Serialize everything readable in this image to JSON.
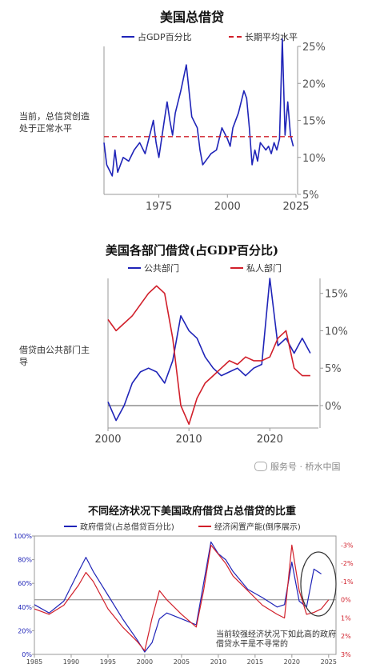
{
  "panels": {
    "p1": {
      "title": "美国总借贷",
      "legend": {
        "series1": "占GDP百分比",
        "series2": "长期平均水平"
      },
      "note": "当前，总信贷创造处于正常水平"
    },
    "p2": {
      "title": "美国各部门借贷(占GDP百分比)",
      "legend": {
        "series1": "公共部门",
        "series2": "私人部门"
      },
      "note": "借贷由公共部门主导"
    },
    "p3": {
      "title": "不同经济状况下美国政府借贷占总借贷的比重",
      "legend": {
        "series1": "政府借贷(占总借贷百分比)",
        "series2": "经济闲置产能(倒序展示)"
      },
      "note": "当前较强经济状况下如此高的政府借贷水平是不寻常的"
    }
  },
  "watermark": "服务号 · 桥水中国",
  "colors": {
    "blue": "#1f24b8",
    "red": "#d11f2a",
    "axis": "#999999"
  },
  "chart_data": [
    {
      "type": "line",
      "title": "美国总借贷",
      "y_axis_side": "right",
      "xlim": [
        1955,
        2025
      ],
      "ylim": [
        5,
        25
      ],
      "xticks": [
        1975,
        2000,
        2025
      ],
      "yticks": [
        5,
        10,
        15,
        20,
        25
      ],
      "ytick_labels": [
        "5%",
        "10%",
        "15%",
        "20%",
        "25%"
      ],
      "series": [
        {
          "name": "占GDP百分比",
          "color": "#1f24b8",
          "points": [
            [
              1955,
              12
            ],
            [
              1956,
              9
            ],
            [
              1958,
              7.5
            ],
            [
              1959,
              11
            ],
            [
              1960,
              8
            ],
            [
              1962,
              10
            ],
            [
              1964,
              9.5
            ],
            [
              1966,
              11
            ],
            [
              1968,
              12
            ],
            [
              1970,
              10.5
            ],
            [
              1972,
              13.5
            ],
            [
              1973,
              15
            ],
            [
              1974,
              12
            ],
            [
              1975,
              10
            ],
            [
              1977,
              15
            ],
            [
              1978,
              17.5
            ],
            [
              1979,
              15
            ],
            [
              1980,
              13
            ],
            [
              1981,
              16
            ],
            [
              1983,
              19
            ],
            [
              1985,
              22.5
            ],
            [
              1986,
              19
            ],
            [
              1987,
              15.5
            ],
            [
              1989,
              14
            ],
            [
              1990,
              11
            ],
            [
              1991,
              9
            ],
            [
              1993,
              10
            ],
            [
              1994,
              10.5
            ],
            [
              1996,
              11
            ],
            [
              1998,
              14
            ],
            [
              2000,
              12.5
            ],
            [
              2001,
              11.5
            ],
            [
              2002,
              14
            ],
            [
              2004,
              16
            ],
            [
              2006,
              19
            ],
            [
              2007,
              18
            ],
            [
              2008,
              14
            ],
            [
              2009,
              9
            ],
            [
              2010,
              11
            ],
            [
              2011,
              9.5
            ],
            [
              2012,
              12
            ],
            [
              2014,
              11
            ],
            [
              2015,
              11.5
            ],
            [
              2016,
              10.5
            ],
            [
              2017,
              12
            ],
            [
              2018,
              11
            ],
            [
              2019,
              12.5
            ],
            [
              2020,
              26
            ],
            [
              2021,
              13
            ],
            [
              2022,
              17.5
            ],
            [
              2023,
              13
            ],
            [
              2024,
              11.5
            ]
          ]
        },
        {
          "name": "长期平均水平",
          "color": "#d11f2a",
          "dashed": true,
          "points": [
            [
              1955,
              12.8
            ],
            [
              2025,
              12.8
            ]
          ]
        }
      ]
    },
    {
      "type": "line",
      "title": "美国各部门借贷(占GDP百分比)",
      "y_axis_side": "right",
      "xlim": [
        2000,
        2026
      ],
      "ylim": [
        -3,
        17
      ],
      "xticks": [
        2000,
        2010,
        2020
      ],
      "yticks": [
        0,
        5,
        10,
        15
      ],
      "ytick_labels": [
        "0%",
        "5%",
        "10%",
        "15%"
      ],
      "zero_line": true,
      "series": [
        {
          "name": "公共部门",
          "color": "#1f24b8",
          "points": [
            [
              2000,
              0.5
            ],
            [
              2001,
              -2
            ],
            [
              2002,
              0
            ],
            [
              2003,
              3
            ],
            [
              2004,
              4.5
            ],
            [
              2005,
              5
            ],
            [
              2006,
              4.5
            ],
            [
              2007,
              3
            ],
            [
              2008,
              6
            ],
            [
              2009,
              12
            ],
            [
              2010,
              10
            ],
            [
              2011,
              9
            ],
            [
              2012,
              6.5
            ],
            [
              2013,
              5
            ],
            [
              2014,
              4
            ],
            [
              2015,
              4.5
            ],
            [
              2016,
              5
            ],
            [
              2017,
              4
            ],
            [
              2018,
              5
            ],
            [
              2019,
              5.5
            ],
            [
              2020,
              17
            ],
            [
              2021,
              8
            ],
            [
              2022,
              9
            ],
            [
              2023,
              7
            ],
            [
              2024,
              9
            ],
            [
              2025,
              7
            ]
          ]
        },
        {
          "name": "私人部门",
          "color": "#d11f2a",
          "points": [
            [
              2000,
              11.5
            ],
            [
              2001,
              10
            ],
            [
              2002,
              11
            ],
            [
              2003,
              12
            ],
            [
              2004,
              13.5
            ],
            [
              2005,
              15
            ],
            [
              2006,
              16
            ],
            [
              2007,
              15
            ],
            [
              2008,
              9
            ],
            [
              2009,
              0
            ],
            [
              2010,
              -2.5
            ],
            [
              2011,
              1
            ],
            [
              2012,
              3
            ],
            [
              2013,
              4
            ],
            [
              2014,
              5
            ],
            [
              2015,
              6
            ],
            [
              2016,
              5.5
            ],
            [
              2017,
              6.5
            ],
            [
              2018,
              6
            ],
            [
              2019,
              6
            ],
            [
              2020,
              6.5
            ],
            [
              2021,
              9
            ],
            [
              2022,
              10
            ],
            [
              2023,
              5
            ],
            [
              2024,
              4
            ],
            [
              2025,
              4
            ]
          ]
        }
      ]
    },
    {
      "type": "line",
      "title": "不同经济状况下美国政府借贷占总借贷的比重",
      "xlim": [
        1985,
        2026
      ],
      "ylim": [
        0,
        100
      ],
      "xticks": [
        1985,
        1990,
        1995,
        2000,
        2005,
        2010,
        2015,
        2020,
        2025
      ],
      "yticks": [
        0,
        20,
        40,
        60,
        80,
        100
      ],
      "ytick_labels": [
        "0%",
        "20%",
        "40%",
        "60%",
        "80%",
        "100%"
      ],
      "y2lim": [
        3,
        -3.5
      ],
      "y2ticks": [
        3,
        2,
        1,
        0,
        -1,
        -2,
        -3
      ],
      "y2tick_labels": [
        "3%",
        "2%",
        "1%",
        "0%",
        "-1%",
        "-2%",
        "-3%"
      ],
      "series": [
        {
          "name": "政府借贷(占总借贷百分比)",
          "color": "#1f24b8",
          "axis": "left",
          "points": [
            [
              1985,
              42
            ],
            [
              1987,
              35
            ],
            [
              1989,
              45
            ],
            [
              1991,
              70
            ],
            [
              1992,
              82
            ],
            [
              1993,
              70
            ],
            [
              1995,
              50
            ],
            [
              1997,
              30
            ],
            [
              1999,
              12
            ],
            [
              2000,
              2
            ],
            [
              2001,
              10
            ],
            [
              2002,
              30
            ],
            [
              2003,
              35
            ],
            [
              2005,
              30
            ],
            [
              2007,
              25
            ],
            [
              2008,
              60
            ],
            [
              2009,
              95
            ],
            [
              2010,
              85
            ],
            [
              2011,
              80
            ],
            [
              2012,
              70
            ],
            [
              2014,
              55
            ],
            [
              2016,
              48
            ],
            [
              2018,
              40
            ],
            [
              2019,
              42
            ],
            [
              2020,
              78
            ],
            [
              2021,
              45
            ],
            [
              2022,
              40
            ],
            [
              2023,
              72
            ],
            [
              2024,
              68
            ]
          ]
        },
        {
          "name": "经济闲置产能(倒序展示)",
          "color": "#d11f2a",
          "axis": "right",
          "points": [
            [
              1985,
              0.5
            ],
            [
              1987,
              0.8
            ],
            [
              1989,
              0.3
            ],
            [
              1991,
              -0.8
            ],
            [
              1992,
              -1.5
            ],
            [
              1993,
              -1
            ],
            [
              1995,
              0.5
            ],
            [
              1997,
              1.5
            ],
            [
              1999,
              2.3
            ],
            [
              2000,
              2.8
            ],
            [
              2001,
              1
            ],
            [
              2002,
              -0.5
            ],
            [
              2003,
              0
            ],
            [
              2005,
              0.8
            ],
            [
              2007,
              1.5
            ],
            [
              2008,
              -0.5
            ],
            [
              2009,
              -3
            ],
            [
              2010,
              -2.5
            ],
            [
              2011,
              -2
            ],
            [
              2012,
              -1.3
            ],
            [
              2014,
              -0.5
            ],
            [
              2016,
              0.3
            ],
            [
              2018,
              0.8
            ],
            [
              2019,
              1
            ],
            [
              2020,
              -3
            ],
            [
              2021,
              -0.5
            ],
            [
              2022,
              0.8
            ],
            [
              2023,
              0.7
            ],
            [
              2024,
              0.5
            ],
            [
              2025,
              0
            ]
          ]
        }
      ]
    }
  ]
}
